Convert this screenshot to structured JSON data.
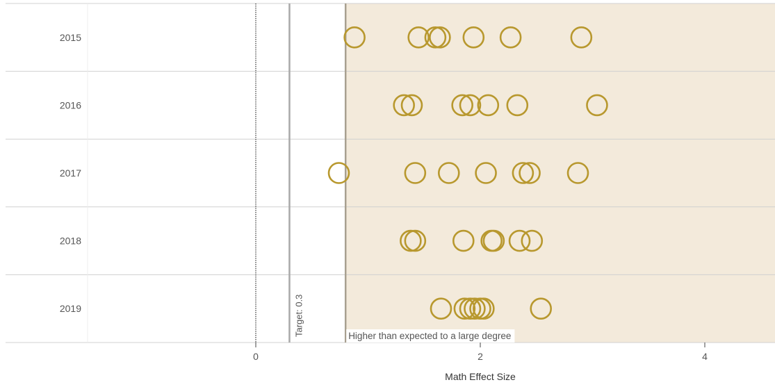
{
  "chart_data": {
    "type": "scatter",
    "xlabel": "Math Effect Size",
    "ylabel": "",
    "xlim": [
      -1.5,
      4.6
    ],
    "x_ticks": [
      0,
      2,
      4
    ],
    "x_tick_labels": [
      "0",
      "2",
      "4"
    ],
    "categories": [
      "2015",
      "2016",
      "2017",
      "2018",
      "2019"
    ],
    "target": {
      "value": 0.3,
      "label": "Target: 0.3"
    },
    "threshold": {
      "value": 0.8,
      "label": "Higher than expected to a large degree"
    },
    "zero_line": 0,
    "colors": {
      "marker": "#b8982e",
      "shade": "#f3eadb",
      "grid": "#d0d0d0",
      "target_line": "#a9a9a9",
      "threshold_line": "#a8a090"
    },
    "series": [
      {
        "category": "2015",
        "x": [
          0.88,
          1.45,
          1.6,
          1.64,
          1.94,
          2.27,
          2.9
        ]
      },
      {
        "category": "2016",
        "x": [
          1.32,
          1.39,
          1.84,
          1.91,
          2.07,
          2.33,
          3.04
        ]
      },
      {
        "category": "2017",
        "x": [
          0.74,
          1.42,
          1.72,
          2.05,
          2.38,
          2.44,
          2.87
        ]
      },
      {
        "category": "2018",
        "x": [
          1.38,
          1.42,
          1.85,
          2.1,
          2.12,
          2.35,
          2.46
        ]
      },
      {
        "category": "2019",
        "x": [
          1.65,
          1.86,
          1.91,
          1.95,
          2.0,
          2.03,
          2.54
        ]
      }
    ]
  }
}
